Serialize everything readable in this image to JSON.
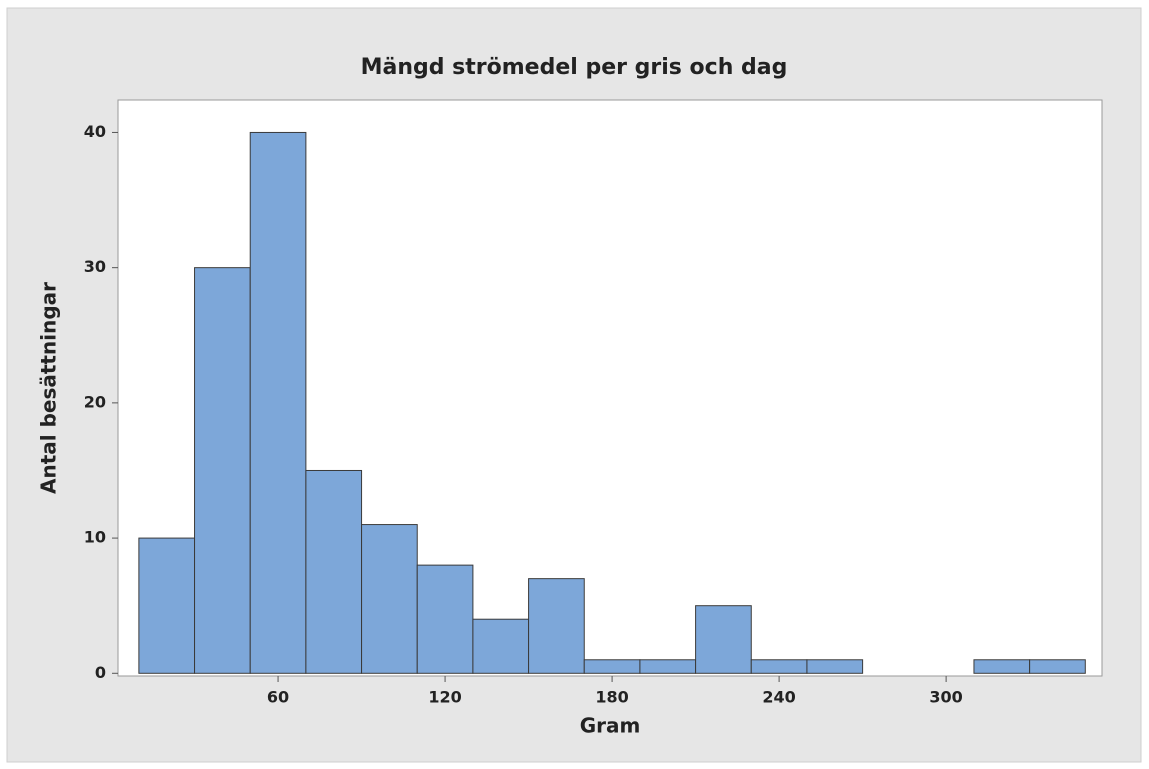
{
  "chart_data": {
    "type": "histogram",
    "title": "Mängd strömedel per gris och dag",
    "x_label": "Gram",
    "y_label": "Antal besättningar",
    "bins": [
      10,
      30,
      50,
      70,
      90,
      110,
      130,
      150,
      170,
      190,
      210,
      230,
      250,
      270,
      290,
      310,
      330,
      350
    ],
    "values": [
      10,
      30,
      40,
      15,
      11,
      8,
      4,
      7,
      1,
      1,
      5,
      1,
      1,
      0,
      0,
      1,
      1
    ],
    "color": "#7da7d9",
    "xlim": [
      2.5,
      356
    ],
    "xticks": [
      60,
      120,
      180,
      240,
      300
    ],
    "ylim": [
      -0.2,
      42.4
    ],
    "yticks": [
      0,
      10,
      20,
      30,
      40
    ],
    "grid": false
  }
}
